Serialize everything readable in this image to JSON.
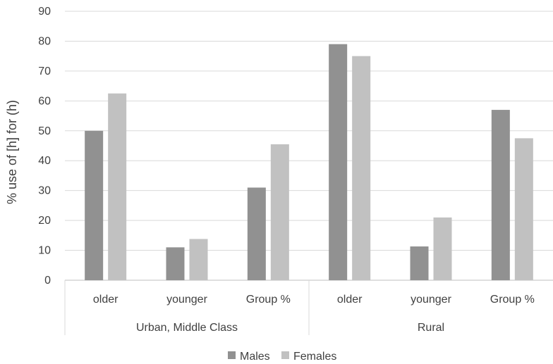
{
  "chart_data": {
    "type": "bar",
    "ylabel": "% use of [h] for (h)",
    "ylim": [
      0,
      90
    ],
    "yticks": [
      0,
      10,
      20,
      30,
      40,
      50,
      60,
      70,
      80,
      90
    ],
    "grid": true,
    "legend_position": "bottom",
    "groups": [
      {
        "label": "Urban, Middle Class",
        "categories": [
          "older",
          "younger",
          "Group %"
        ]
      },
      {
        "label": "Rural",
        "categories": [
          "older",
          "younger",
          "Group %"
        ]
      }
    ],
    "series": [
      {
        "name": "Males",
        "color": "#919191",
        "values": [
          50,
          11,
          31,
          79,
          11.3,
          57
        ]
      },
      {
        "name": "Females",
        "color": "#c1c1c1",
        "values": [
          62.5,
          13.8,
          45.5,
          75,
          21,
          47.5
        ]
      }
    ]
  }
}
